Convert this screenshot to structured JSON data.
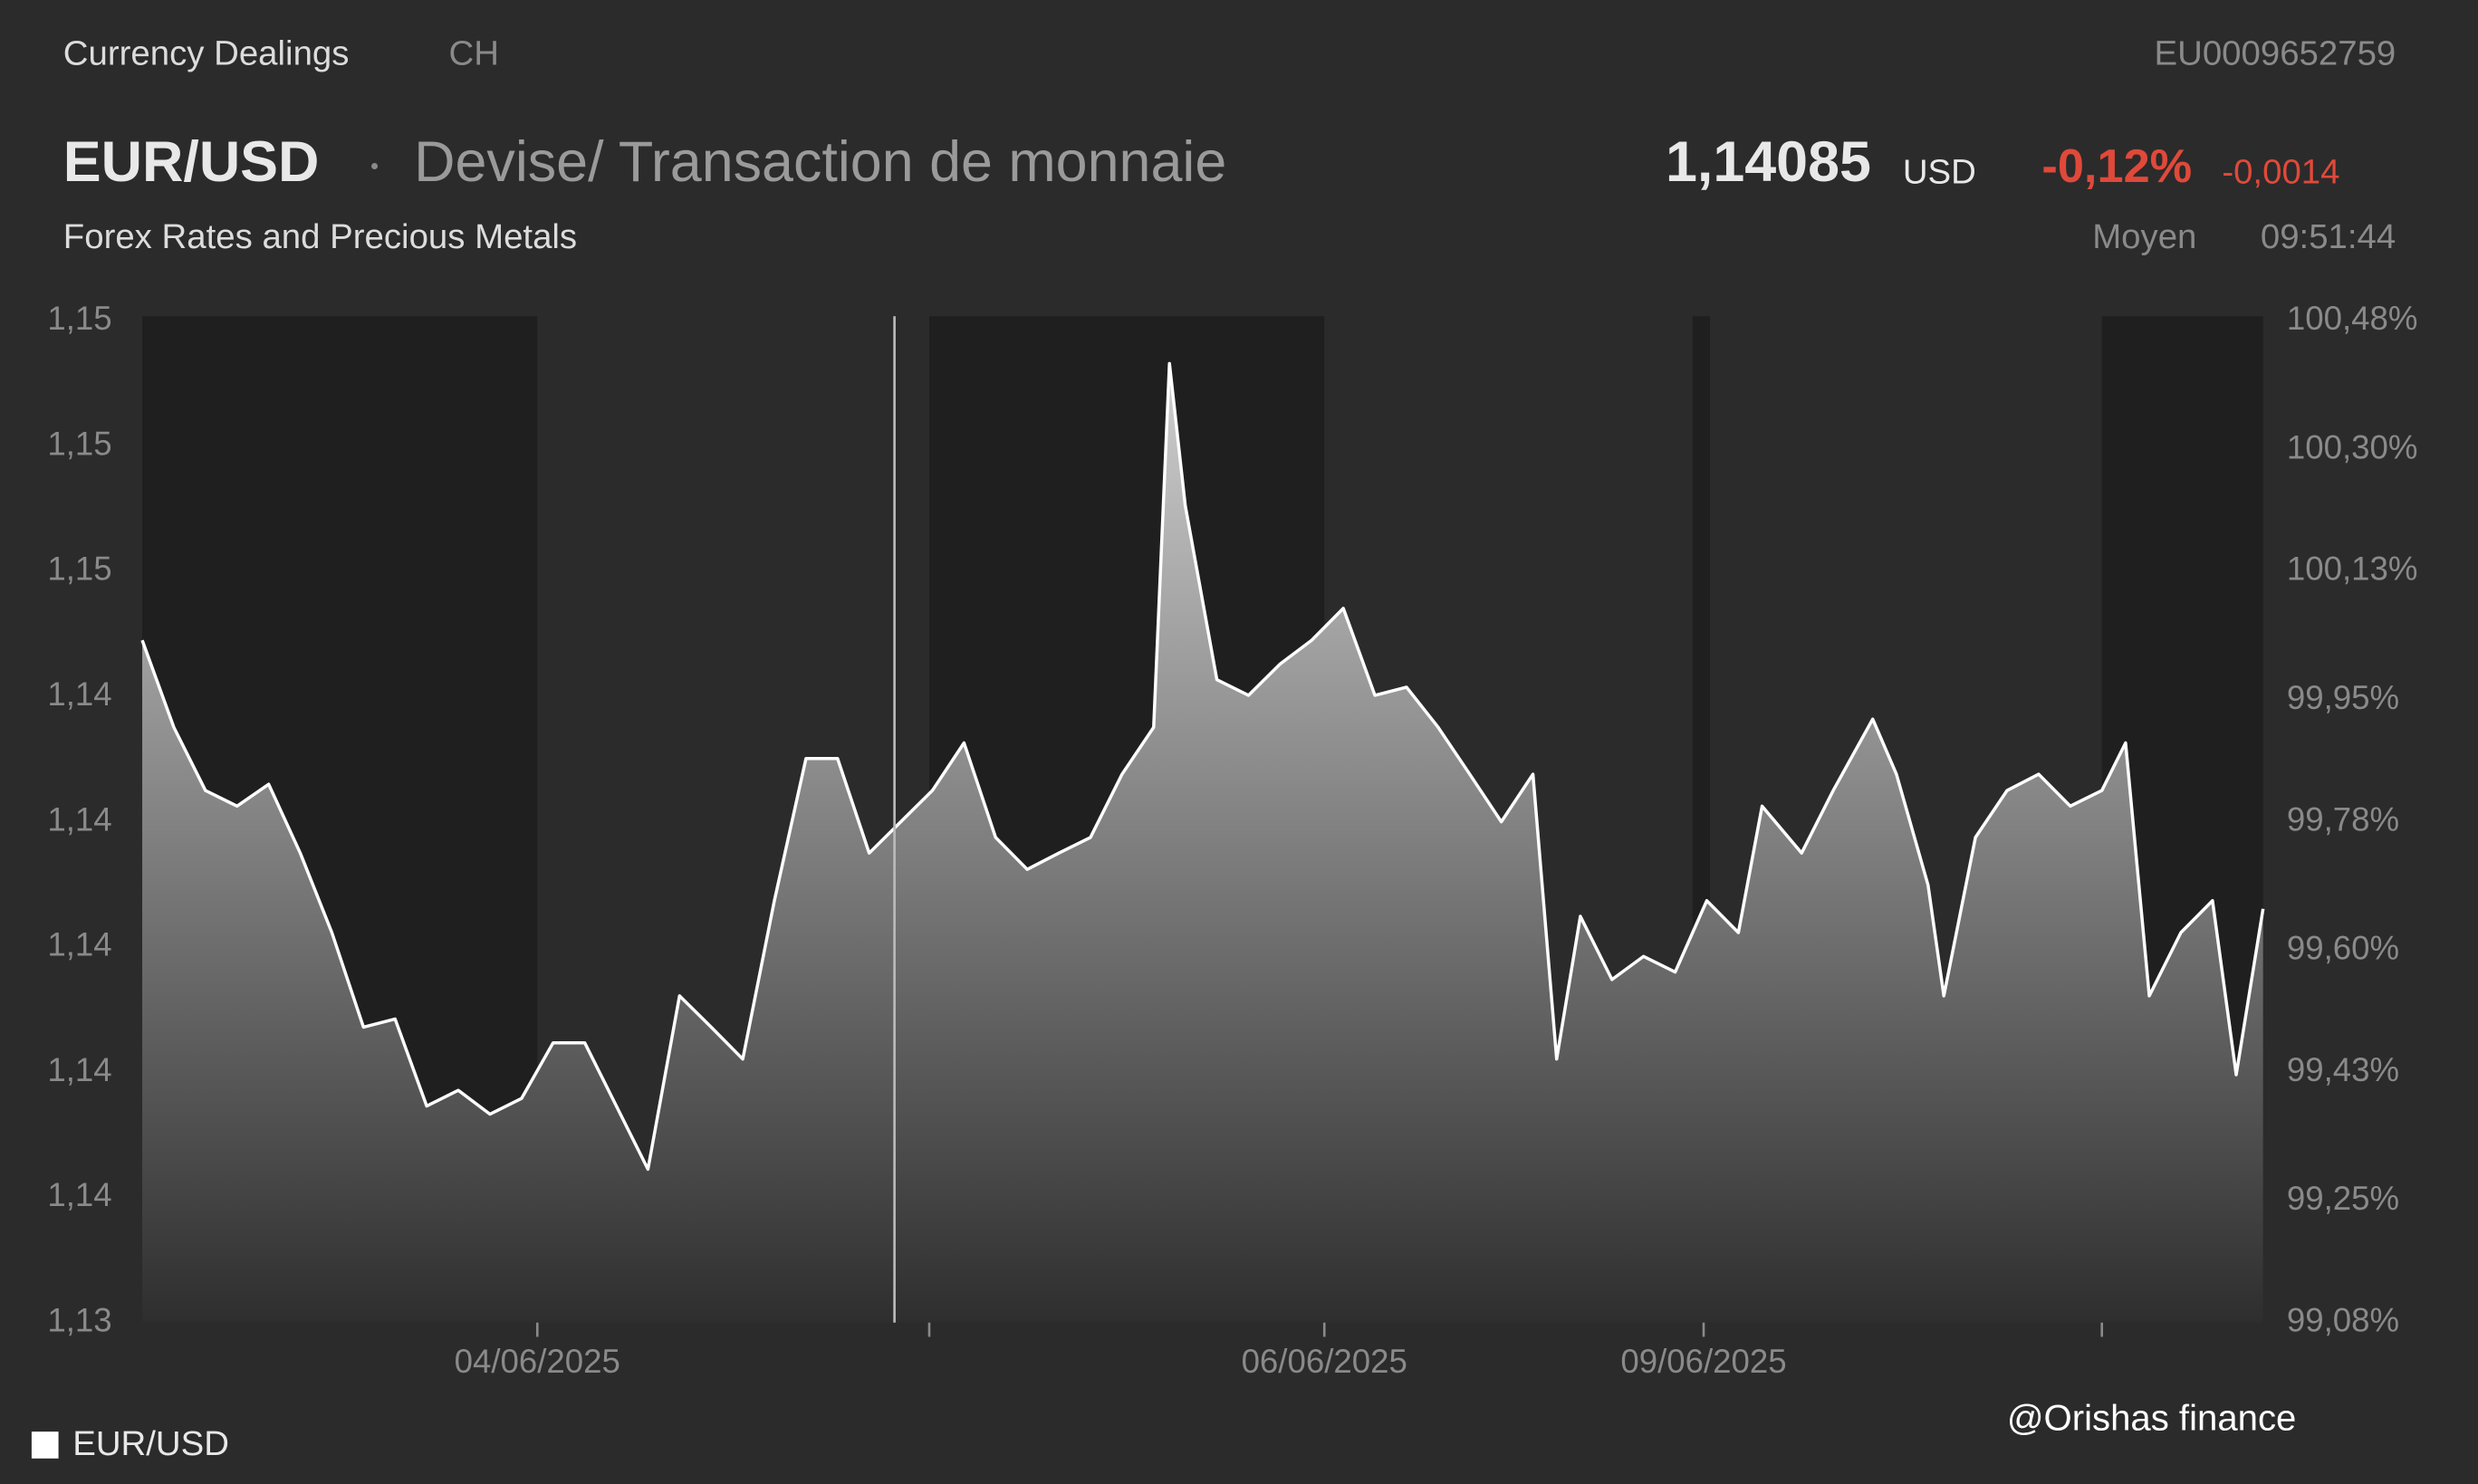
{
  "header": {
    "source": "Currency Dealings",
    "country": "CH",
    "isin": "EU0009652759",
    "symbol": "EUR/USD",
    "description": "Devise/ Transaction de monnaie",
    "market": "Forex Rates and Precious Metals",
    "price": "1,14085",
    "currency": "USD",
    "change_pct": "-0,12%",
    "change_abs": "-0,0014",
    "price_type": "Moyen",
    "time": "09:51:44"
  },
  "watermark": "@Orishas finance",
  "chart_data": {
    "type": "area",
    "x": [
      0,
      1,
      2,
      3,
      4,
      5,
      6,
      7,
      8,
      9,
      10,
      11,
      12,
      13,
      14,
      15,
      16,
      17,
      18,
      19,
      20,
      21,
      22,
      23,
      24,
      25,
      26,
      27,
      28,
      29,
      30,
      31,
      32,
      32.5,
      33,
      34,
      35,
      36,
      37,
      38,
      39,
      40,
      41,
      42,
      43,
      44,
      44.75,
      45.5,
      46.5,
      47.5,
      48.5,
      49.5,
      50.5,
      51.25,
      52.5,
      53.5,
      54.75,
      55.5,
      56.5,
      57,
      58,
      59,
      60,
      61,
      62,
      62.75,
      63.5,
      64.5,
      65.5,
      66.25,
      67.1
    ],
    "series": [
      {
        "name": "EUR/USD",
        "color": "#ffffff",
        "values": [
          1.1439,
          1.14251,
          1.1415,
          1.14125,
          1.1416,
          1.1405,
          1.13923,
          1.13772,
          1.13785,
          1.13646,
          1.13671,
          1.13633,
          1.13658,
          1.13747,
          1.13747,
          1.13646,
          1.13545,
          1.13822,
          1.13772,
          1.13721,
          1.13974,
          1.14201,
          1.14201,
          1.1405,
          1.141,
          1.1415,
          1.14226,
          1.14075,
          1.14024,
          1.1405,
          1.14075,
          1.14176,
          1.14251,
          1.14832,
          1.14605,
          1.14327,
          1.14302,
          1.14352,
          1.1439,
          1.14441,
          1.14302,
          1.14315,
          1.14251,
          1.14176,
          1.141,
          1.14176,
          1.13721,
          1.13949,
          1.13848,
          1.13885,
          1.1386,
          1.13974,
          1.13923,
          1.14125,
          1.1405,
          1.1415,
          1.14264,
          1.14176,
          1.13999,
          1.13822,
          1.14075,
          1.1415,
          1.14176,
          1.14125,
          1.1415,
          1.14226,
          1.13822,
          1.13923,
          1.13974,
          1.13696,
          1.13961
        ]
      }
    ],
    "xlim": [
      0,
      67.1
    ],
    "xticks": [
      {
        "value": 12.5,
        "label": "04/06/2025"
      },
      {
        "value": 24.9,
        "label": null
      },
      {
        "value": 37.4,
        "label": "06/06/2025"
      },
      {
        "value": 49.4,
        "label": "09/06/2025"
      },
      {
        "value": 62,
        "label": null
      }
    ],
    "shaded_ranges": [
      [
        0,
        12.5
      ],
      [
        24.9,
        37.4
      ],
      [
        49.05,
        49.6
      ],
      [
        62,
        67.1
      ]
    ],
    "ylim": [
      1.133,
      1.149
    ],
    "yticks": [
      {
        "value": 1.133,
        "label": "1,13"
      },
      {
        "value": 1.135,
        "label": "1,14"
      },
      {
        "value": 1.137,
        "label": "1,14"
      },
      {
        "value": 1.139,
        "label": "1,14"
      },
      {
        "value": 1.141,
        "label": "1,14"
      },
      {
        "value": 1.143,
        "label": "1,14"
      },
      {
        "value": 1.145,
        "label": "1,15"
      },
      {
        "value": 1.147,
        "label": "1,15"
      },
      {
        "value": 1.149,
        "label": "1,15"
      }
    ],
    "y2lim": [
      99.08,
      100.48
    ],
    "y2ticks": [
      {
        "value": 99.08,
        "label": "99,08%"
      },
      {
        "value": 99.25,
        "label": "99,25%"
      },
      {
        "value": 99.43,
        "label": "99,43%"
      },
      {
        "value": 99.6,
        "label": "99,60%"
      },
      {
        "value": 99.78,
        "label": "99,78%"
      },
      {
        "value": 99.95,
        "label": "99,95%"
      },
      {
        "value": 100.13,
        "label": "100,13%"
      },
      {
        "value": 100.3,
        "label": "100,30%"
      },
      {
        "value": 100.48,
        "label": "100,48%"
      }
    ]
  }
}
